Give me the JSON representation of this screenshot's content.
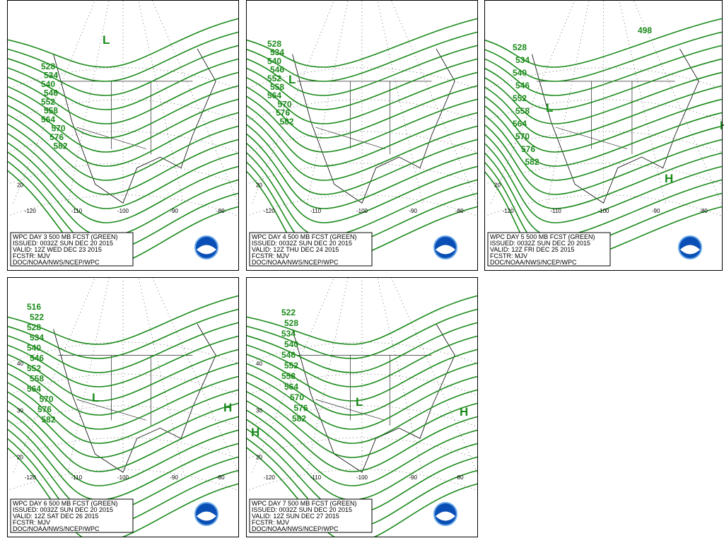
{
  "panels": [
    {
      "caption": [
        "WPC DAY 3 500 MB FCST (GREEN)",
        "ISSUED: 0032Z SUN DEC 20 2015",
        "VALID: 12Z WED DEC 23 2015",
        "FCSTR: MJV",
        "DOC/NOAA/NWS/NCEP/WPC"
      ],
      "contours": [
        528,
        534,
        540,
        546,
        552,
        558,
        564,
        570,
        576,
        582
      ],
      "lows": [
        "L"
      ],
      "highs": [],
      "lon_labels": [
        -120,
        -110,
        -100,
        -90,
        -80
      ],
      "lat_labels": [
        20
      ]
    },
    {
      "caption": [
        "WPC DAY 4 500 MB FCST (GREEN)",
        "ISSUED: 0032Z SUN DEC 20 2015",
        "VALID: 12Z THU DEC 24 2015",
        "FCSTR: MJV",
        "DOC/NOAA/NWS/NCEP/WPC"
      ],
      "contours": [
        528,
        534,
        540,
        546,
        552,
        558,
        564,
        570,
        576,
        582
      ],
      "lows": [
        "L"
      ],
      "highs": [],
      "lon_labels": [
        -120,
        -110,
        -100,
        -90,
        -80
      ],
      "lat_labels": [
        20
      ]
    },
    {
      "caption": [
        "WPC DAY 5 500 MB FCST (GREEN)",
        "ISSUED: 0032Z SUN DEC 20 2015",
        "VALID: 12Z FRI DEC 25 2015",
        "FCSTR: MJV",
        "DOC/NOAA/NWS/NCEP/WPC"
      ],
      "contours": [
        498,
        528,
        534,
        540,
        546,
        552,
        558,
        564,
        570,
        576,
        582
      ],
      "lows": [
        "L"
      ],
      "highs": [
        "H",
        "H"
      ],
      "lon_labels": [
        -120,
        -110,
        -100,
        -90,
        -80
      ],
      "lat_labels": [
        20
      ]
    },
    {
      "caption": [
        "WPC DAY 6 500 MB FCST (GREEN)",
        "ISSUED: 0032Z SUN DEC 20 2015",
        "VALID: 12Z SAT DEC 26 2015",
        "FCSTR: MJV",
        "DOC/NOAA/NWS/NCEP/WPC"
      ],
      "contours": [
        516,
        522,
        528,
        534,
        540,
        546,
        552,
        558,
        564,
        570,
        576,
        582
      ],
      "lows": [
        "L"
      ],
      "highs": [
        "H"
      ],
      "lon_labels": [
        -120,
        -110,
        -100,
        -90,
        -80
      ],
      "lat_labels": [
        40,
        30,
        20
      ]
    },
    {
      "caption": [
        "WPC DAY 7 500 MB FCST (GREEN)",
        "ISSUED: 0032Z SUN DEC 20 2015",
        "VALID: 12Z SUN DEC 27 2015",
        "FCSTR: MJV",
        "DOC/NOAA/NWS/NCEP/WPC"
      ],
      "contours": [
        522,
        528,
        534,
        540,
        546,
        552,
        558,
        564,
        570,
        576,
        582
      ],
      "lows": [
        "L"
      ],
      "highs": [
        "H",
        "H"
      ],
      "lon_labels": [
        -120,
        -110,
        -100,
        -90,
        -80
      ],
      "lat_labels": [
        40,
        30,
        20
      ]
    }
  ]
}
